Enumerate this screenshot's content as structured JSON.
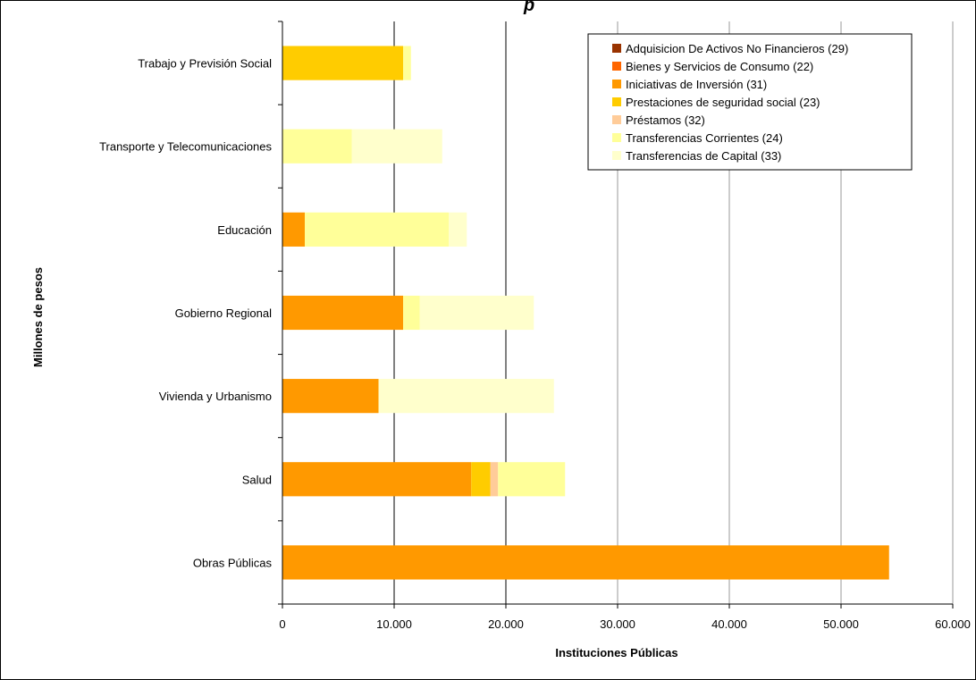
{
  "title_fragment": "p",
  "chart_data": {
    "type": "bar",
    "orientation": "horizontal",
    "stacked": true,
    "xlabel": "Instituciones Públicas",
    "ylabel": "Millones de pesos",
    "xlim": [
      0,
      60000
    ],
    "xticks": [
      {
        "value": 0,
        "label": "0"
      },
      {
        "value": 10000,
        "label": "10.000"
      },
      {
        "value": 20000,
        "label": "20.000"
      },
      {
        "value": 30000,
        "label": "30.000"
      },
      {
        "value": 40000,
        "label": "40.000"
      },
      {
        "value": 50000,
        "label": "50.000"
      },
      {
        "value": 60000,
        "label": "60.000"
      }
    ],
    "grid": "vertical",
    "legend_position": "top-right",
    "categories": [
      "Trabajo y Previsión Social",
      "Transporte y Telecomunicaciones",
      "Educación",
      "Gobierno Regional",
      "Vivienda y Urbanismo",
      "Salud",
      "Obras Públicas"
    ],
    "series": [
      {
        "name": "Adquisicion De Activos No Financieros  (29)",
        "color": "#993300",
        "values": [
          0,
          0,
          0,
          0,
          0,
          0,
          0
        ]
      },
      {
        "name": "Bienes y Servicios de Consumo (22)",
        "color": "#ff6600",
        "values": [
          0,
          0,
          0,
          0,
          0,
          0,
          0
        ]
      },
      {
        "name": "Iniciativas de Inversión (31)",
        "color": "#ff9900",
        "values": [
          0,
          0,
          2000,
          10800,
          8600,
          16900,
          54300
        ]
      },
      {
        "name": "Prestaciones de seguridad social (23)",
        "color": "#ffcc00",
        "values": [
          10800,
          0,
          0,
          0,
          0,
          1700,
          0
        ]
      },
      {
        "name": "Préstamos (32)",
        "color": "#ffcc99",
        "values": [
          0,
          0,
          0,
          0,
          0,
          700,
          0
        ]
      },
      {
        "name": "Transferencias Corrientes (24)",
        "color": "#ffff99",
        "values": [
          700,
          6200,
          12900,
          1500,
          0,
          6000,
          0
        ]
      },
      {
        "name": "Transferencias de Capital (33)",
        "color": "#ffffcc",
        "values": [
          0,
          8100,
          1600,
          10200,
          15700,
          0,
          0
        ]
      }
    ]
  }
}
